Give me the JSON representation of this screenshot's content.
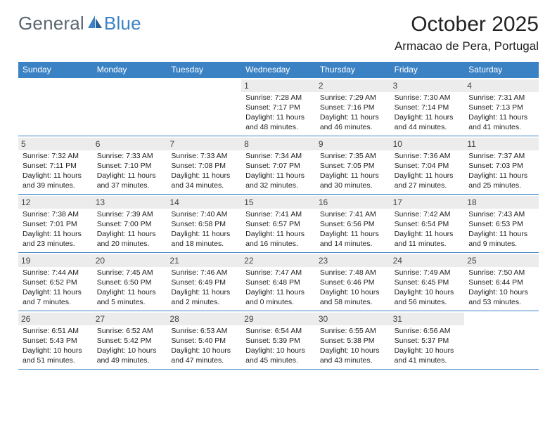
{
  "brand": {
    "part1": "General",
    "part2": "Blue"
  },
  "title": "October 2025",
  "location": "Armacao de Pera, Portugal",
  "colors": {
    "accent": "#3b82c4",
    "dayband": "#ececec",
    "text": "#222222",
    "logo_grey": "#5a6770",
    "background": "#ffffff"
  },
  "daynames": [
    "Sunday",
    "Monday",
    "Tuesday",
    "Wednesday",
    "Thursday",
    "Friday",
    "Saturday"
  ],
  "weeks": [
    [
      null,
      null,
      null,
      {
        "n": "1",
        "sr": "Sunrise: 7:28 AM",
        "ss": "Sunset: 7:17 PM",
        "d1": "Daylight: 11 hours",
        "d2": "and 48 minutes."
      },
      {
        "n": "2",
        "sr": "Sunrise: 7:29 AM",
        "ss": "Sunset: 7:16 PM",
        "d1": "Daylight: 11 hours",
        "d2": "and 46 minutes."
      },
      {
        "n": "3",
        "sr": "Sunrise: 7:30 AM",
        "ss": "Sunset: 7:14 PM",
        "d1": "Daylight: 11 hours",
        "d2": "and 44 minutes."
      },
      {
        "n": "4",
        "sr": "Sunrise: 7:31 AM",
        "ss": "Sunset: 7:13 PM",
        "d1": "Daylight: 11 hours",
        "d2": "and 41 minutes."
      }
    ],
    [
      {
        "n": "5",
        "sr": "Sunrise: 7:32 AM",
        "ss": "Sunset: 7:11 PM",
        "d1": "Daylight: 11 hours",
        "d2": "and 39 minutes."
      },
      {
        "n": "6",
        "sr": "Sunrise: 7:33 AM",
        "ss": "Sunset: 7:10 PM",
        "d1": "Daylight: 11 hours",
        "d2": "and 37 minutes."
      },
      {
        "n": "7",
        "sr": "Sunrise: 7:33 AM",
        "ss": "Sunset: 7:08 PM",
        "d1": "Daylight: 11 hours",
        "d2": "and 34 minutes."
      },
      {
        "n": "8",
        "sr": "Sunrise: 7:34 AM",
        "ss": "Sunset: 7:07 PM",
        "d1": "Daylight: 11 hours",
        "d2": "and 32 minutes."
      },
      {
        "n": "9",
        "sr": "Sunrise: 7:35 AM",
        "ss": "Sunset: 7:05 PM",
        "d1": "Daylight: 11 hours",
        "d2": "and 30 minutes."
      },
      {
        "n": "10",
        "sr": "Sunrise: 7:36 AM",
        "ss": "Sunset: 7:04 PM",
        "d1": "Daylight: 11 hours",
        "d2": "and 27 minutes."
      },
      {
        "n": "11",
        "sr": "Sunrise: 7:37 AM",
        "ss": "Sunset: 7:03 PM",
        "d1": "Daylight: 11 hours",
        "d2": "and 25 minutes."
      }
    ],
    [
      {
        "n": "12",
        "sr": "Sunrise: 7:38 AM",
        "ss": "Sunset: 7:01 PM",
        "d1": "Daylight: 11 hours",
        "d2": "and 23 minutes."
      },
      {
        "n": "13",
        "sr": "Sunrise: 7:39 AM",
        "ss": "Sunset: 7:00 PM",
        "d1": "Daylight: 11 hours",
        "d2": "and 20 minutes."
      },
      {
        "n": "14",
        "sr": "Sunrise: 7:40 AM",
        "ss": "Sunset: 6:58 PM",
        "d1": "Daylight: 11 hours",
        "d2": "and 18 minutes."
      },
      {
        "n": "15",
        "sr": "Sunrise: 7:41 AM",
        "ss": "Sunset: 6:57 PM",
        "d1": "Daylight: 11 hours",
        "d2": "and 16 minutes."
      },
      {
        "n": "16",
        "sr": "Sunrise: 7:41 AM",
        "ss": "Sunset: 6:56 PM",
        "d1": "Daylight: 11 hours",
        "d2": "and 14 minutes."
      },
      {
        "n": "17",
        "sr": "Sunrise: 7:42 AM",
        "ss": "Sunset: 6:54 PM",
        "d1": "Daylight: 11 hours",
        "d2": "and 11 minutes."
      },
      {
        "n": "18",
        "sr": "Sunrise: 7:43 AM",
        "ss": "Sunset: 6:53 PM",
        "d1": "Daylight: 11 hours",
        "d2": "and 9 minutes."
      }
    ],
    [
      {
        "n": "19",
        "sr": "Sunrise: 7:44 AM",
        "ss": "Sunset: 6:52 PM",
        "d1": "Daylight: 11 hours",
        "d2": "and 7 minutes."
      },
      {
        "n": "20",
        "sr": "Sunrise: 7:45 AM",
        "ss": "Sunset: 6:50 PM",
        "d1": "Daylight: 11 hours",
        "d2": "and 5 minutes."
      },
      {
        "n": "21",
        "sr": "Sunrise: 7:46 AM",
        "ss": "Sunset: 6:49 PM",
        "d1": "Daylight: 11 hours",
        "d2": "and 2 minutes."
      },
      {
        "n": "22",
        "sr": "Sunrise: 7:47 AM",
        "ss": "Sunset: 6:48 PM",
        "d1": "Daylight: 11 hours",
        "d2": "and 0 minutes."
      },
      {
        "n": "23",
        "sr": "Sunrise: 7:48 AM",
        "ss": "Sunset: 6:46 PM",
        "d1": "Daylight: 10 hours",
        "d2": "and 58 minutes."
      },
      {
        "n": "24",
        "sr": "Sunrise: 7:49 AM",
        "ss": "Sunset: 6:45 PM",
        "d1": "Daylight: 10 hours",
        "d2": "and 56 minutes."
      },
      {
        "n": "25",
        "sr": "Sunrise: 7:50 AM",
        "ss": "Sunset: 6:44 PM",
        "d1": "Daylight: 10 hours",
        "d2": "and 53 minutes."
      }
    ],
    [
      {
        "n": "26",
        "sr": "Sunrise: 6:51 AM",
        "ss": "Sunset: 5:43 PM",
        "d1": "Daylight: 10 hours",
        "d2": "and 51 minutes."
      },
      {
        "n": "27",
        "sr": "Sunrise: 6:52 AM",
        "ss": "Sunset: 5:42 PM",
        "d1": "Daylight: 10 hours",
        "d2": "and 49 minutes."
      },
      {
        "n": "28",
        "sr": "Sunrise: 6:53 AM",
        "ss": "Sunset: 5:40 PM",
        "d1": "Daylight: 10 hours",
        "d2": "and 47 minutes."
      },
      {
        "n": "29",
        "sr": "Sunrise: 6:54 AM",
        "ss": "Sunset: 5:39 PM",
        "d1": "Daylight: 10 hours",
        "d2": "and 45 minutes."
      },
      {
        "n": "30",
        "sr": "Sunrise: 6:55 AM",
        "ss": "Sunset: 5:38 PM",
        "d1": "Daylight: 10 hours",
        "d2": "and 43 minutes."
      },
      {
        "n": "31",
        "sr": "Sunrise: 6:56 AM",
        "ss": "Sunset: 5:37 PM",
        "d1": "Daylight: 10 hours",
        "d2": "and 41 minutes."
      },
      null
    ]
  ]
}
